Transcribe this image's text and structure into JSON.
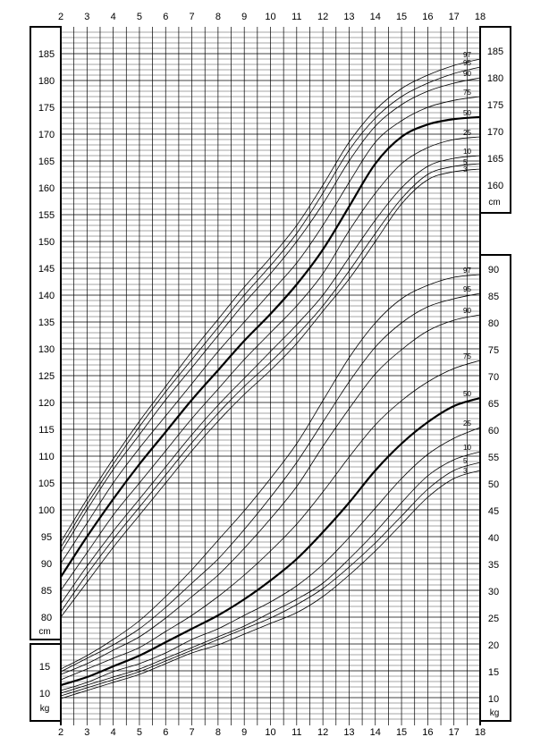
{
  "chart_data": {
    "type": "line",
    "x_ticks": [
      2,
      3,
      4,
      5,
      6,
      7,
      8,
      9,
      10,
      11,
      12,
      13,
      14,
      15,
      16,
      17,
      18
    ],
    "xlim": [
      2,
      18
    ],
    "height_axis": {
      "unit": "cm",
      "left_ticks": [
        80,
        85,
        90,
        95,
        100,
        105,
        110,
        115,
        120,
        125,
        130,
        135,
        140,
        145,
        150,
        155,
        160,
        165,
        170,
        175,
        180,
        185
      ],
      "right_ticks": [
        160,
        165,
        170,
        175,
        180,
        185
      ],
      "ylim": [
        78,
        190
      ]
    },
    "weight_axis": {
      "unit": "kg",
      "left_ticks": [
        10,
        15
      ],
      "right_ticks": [
        10,
        15,
        20,
        25,
        30,
        35,
        40,
        45,
        50,
        55,
        60,
        65,
        70,
        75,
        80,
        85,
        90
      ],
      "ylim": [
        7,
        93
      ]
    },
    "x": [
      2,
      3,
      4,
      5,
      6,
      7,
      8,
      9,
      10,
      11,
      12,
      13,
      14,
      15,
      16,
      17,
      18
    ],
    "height_series": [
      {
        "name": "3",
        "values": [
          80.0,
          86.5,
          93.0,
          99.0,
          105.0,
          111.0,
          116.5,
          121.5,
          126.0,
          131.0,
          137.0,
          143.0,
          150.0,
          157.0,
          161.5,
          163.0,
          163.5
        ]
      },
      {
        "name": "5",
        "values": [
          81.0,
          88.0,
          94.5,
          100.5,
          106.5,
          112.5,
          118.0,
          123.0,
          127.5,
          132.5,
          138.0,
          144.5,
          151.5,
          158.0,
          162.5,
          164.0,
          164.5
        ]
      },
      {
        "name": "10",
        "values": [
          82.5,
          89.5,
          96.0,
          102.0,
          108.0,
          114.0,
          119.5,
          124.5,
          129.5,
          134.5,
          140.0,
          147.0,
          154.0,
          160.0,
          164.0,
          165.5,
          166.0
        ]
      },
      {
        "name": "25",
        "values": [
          85.0,
          92.0,
          99.0,
          105.0,
          111.0,
          117.0,
          122.5,
          128.0,
          133.0,
          138.0,
          144.0,
          152.0,
          159.0,
          164.5,
          167.5,
          169.0,
          169.5
        ]
      },
      {
        "name": "50",
        "values": [
          87.5,
          95.0,
          102.0,
          108.5,
          114.5,
          120.5,
          126.0,
          131.5,
          136.5,
          142.0,
          148.5,
          156.5,
          164.5,
          169.5,
          171.8,
          172.8,
          173.2
        ]
      },
      {
        "name": "75",
        "values": [
          90.0,
          97.5,
          105.0,
          111.5,
          117.5,
          123.5,
          129.5,
          135.0,
          140.5,
          146.0,
          153.0,
          161.0,
          168.5,
          172.5,
          175.0,
          176.3,
          177.0
        ]
      },
      {
        "name": "90",
        "values": [
          92.0,
          100.0,
          107.5,
          114.0,
          120.5,
          126.5,
          132.5,
          138.5,
          144.0,
          150.0,
          157.0,
          165.0,
          171.5,
          175.5,
          178.0,
          179.5,
          180.5
        ]
      },
      {
        "name": "95",
        "values": [
          93.0,
          101.0,
          108.5,
          115.5,
          122.0,
          128.0,
          134.0,
          140.0,
          145.5,
          151.5,
          159.0,
          167.0,
          173.0,
          177.0,
          179.5,
          181.3,
          182.5
        ]
      },
      {
        "name": "97",
        "values": [
          94.0,
          102.0,
          109.5,
          116.5,
          123.0,
          129.5,
          135.5,
          141.5,
          147.0,
          153.0,
          160.5,
          168.5,
          174.5,
          178.5,
          181.0,
          182.8,
          184.0
        ]
      }
    ],
    "weight_series": [
      {
        "name": "3",
        "values": [
          10.0,
          11.5,
          13.0,
          14.5,
          16.5,
          18.5,
          20.0,
          22.0,
          24.0,
          26.0,
          29.0,
          33.0,
          37.5,
          42.5,
          47.5,
          51.0,
          52.5
        ]
      },
      {
        "name": "5",
        "values": [
          10.5,
          12.0,
          13.5,
          15.0,
          17.0,
          19.0,
          21.0,
          23.0,
          25.0,
          27.5,
          30.5,
          34.5,
          39.0,
          44.0,
          49.0,
          52.5,
          54.0
        ]
      },
      {
        "name": "10",
        "values": [
          11.0,
          12.5,
          14.0,
          15.5,
          17.5,
          19.5,
          21.5,
          23.5,
          26.0,
          28.5,
          31.5,
          36.0,
          41.0,
          46.5,
          51.5,
          54.5,
          56.0
        ]
      },
      {
        "name": "25",
        "values": [
          11.5,
          13.0,
          15.0,
          16.5,
          18.5,
          21.0,
          23.0,
          25.5,
          28.0,
          31.0,
          35.0,
          40.0,
          45.5,
          51.0,
          55.5,
          58.5,
          60.5
        ]
      },
      {
        "name": "50",
        "values": [
          12.5,
          14.0,
          16.0,
          18.0,
          20.5,
          23.0,
          25.5,
          28.5,
          32.0,
          36.0,
          41.0,
          46.5,
          52.5,
          57.5,
          61.5,
          64.5,
          66.0
        ]
      },
      {
        "name": "75",
        "values": [
          13.5,
          15.5,
          17.5,
          19.5,
          22.5,
          25.5,
          29.0,
          33.0,
          37.5,
          42.5,
          48.5,
          55.0,
          61.0,
          65.5,
          69.0,
          71.5,
          73.0
        ]
      },
      {
        "name": "90",
        "values": [
          14.5,
          16.5,
          19.0,
          21.5,
          25.0,
          29.0,
          33.0,
          38.0,
          43.5,
          49.5,
          57.0,
          64.0,
          70.5,
          75.0,
          78.5,
          80.5,
          81.5
        ]
      },
      {
        "name": "95",
        "values": [
          15.0,
          17.5,
          20.0,
          23.0,
          27.0,
          31.5,
          36.0,
          41.5,
          47.5,
          54.0,
          61.5,
          69.0,
          75.5,
          80.0,
          83.0,
          84.5,
          85.5
        ]
      },
      {
        "name": "97",
        "values": [
          15.5,
          18.0,
          21.0,
          24.5,
          29.0,
          34.0,
          39.5,
          45.0,
          51.0,
          57.5,
          65.5,
          73.5,
          80.0,
          84.5,
          87.0,
          88.5,
          89.0
        ]
      }
    ]
  }
}
